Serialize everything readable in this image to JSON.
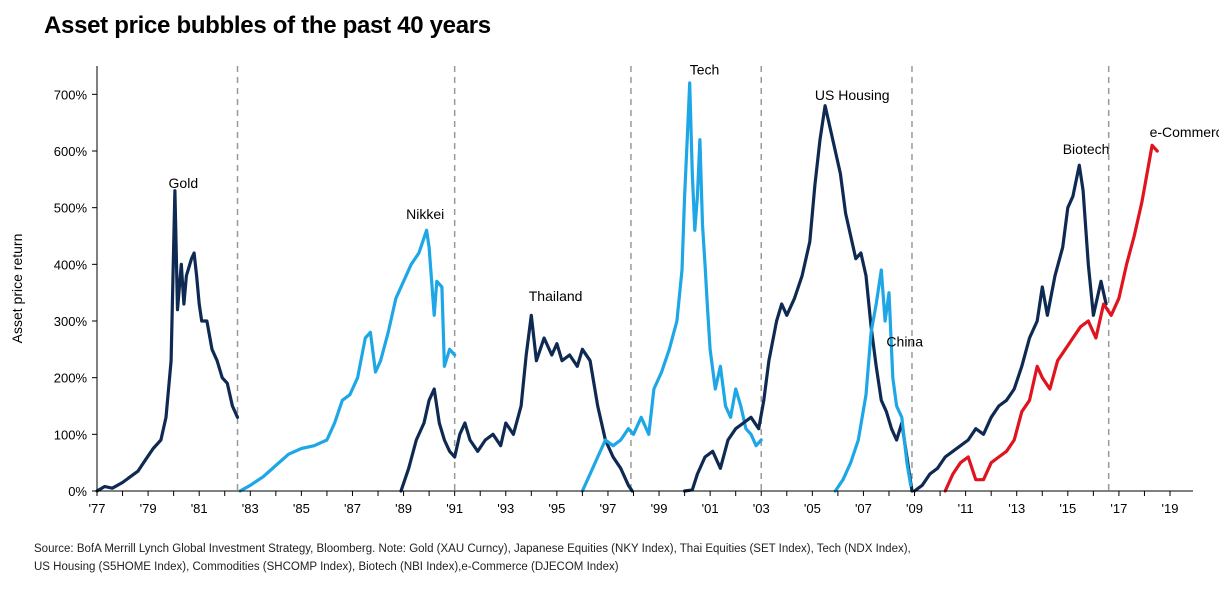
{
  "title": "Asset price bubbles of the past 40 years",
  "source_lines": [
    "Source: BofA Merrill Lynch Global Investment Strategy, Bloomberg. Note: Gold (XAU Curncy), Japanese Equities (NKY Index), Thai Equities (SET Index), Tech (NDX Index),",
    "US Housing (S5HOME Index), Commodities (SHCOMP Index), Biotech (NBI Index),e-Commerce (DJECOM Index)"
  ],
  "colors": {
    "dark": "#0f2a52",
    "light": "#1ea7e6",
    "red": "#e0141e",
    "divider": "#999999"
  },
  "chart_data": {
    "type": "line",
    "title": "Asset price bubbles of the past 40 years",
    "xlabel": "",
    "ylabel": "Asset price return",
    "xlim": [
      1977,
      2019.9
    ],
    "ylim": [
      0,
      750
    ],
    "yticks": [
      0,
      100,
      200,
      300,
      400,
      500,
      600,
      700
    ],
    "ytick_labels": [
      "0%",
      "100%",
      "200%",
      "300%",
      "400%",
      "500%",
      "600%",
      "700%"
    ],
    "xticks": [
      1977,
      1979,
      1981,
      1983,
      1985,
      1987,
      1989,
      1991,
      1993,
      1995,
      1997,
      1999,
      2001,
      2003,
      2005,
      2007,
      2009,
      2011,
      2013,
      2015,
      2017,
      2019
    ],
    "xtick_labels": [
      "'77",
      "'79",
      "'81",
      "'83",
      "'85",
      "'87",
      "'89",
      "'91",
      "'93",
      "'95",
      "'97",
      "'99",
      "'01",
      "'03",
      "'05",
      "'07",
      "'09",
      "'11",
      "'13",
      "'15",
      "'17",
      "'19"
    ],
    "dividers": [
      1982.5,
      1991.0,
      1997.9,
      2003.0,
      2008.9,
      2016.6
    ],
    "grid": false,
    "series": [
      {
        "name": "Gold",
        "color_key": "dark",
        "label_at": [
          1979.8,
          535
        ],
        "points": [
          [
            1977.0,
            0
          ],
          [
            1977.3,
            8
          ],
          [
            1977.6,
            5
          ],
          [
            1978.0,
            15
          ],
          [
            1978.3,
            25
          ],
          [
            1978.6,
            35
          ],
          [
            1978.9,
            55
          ],
          [
            1979.2,
            75
          ],
          [
            1979.5,
            90
          ],
          [
            1979.7,
            130
          ],
          [
            1979.9,
            230
          ],
          [
            1980.05,
            530
          ],
          [
            1980.15,
            320
          ],
          [
            1980.3,
            400
          ],
          [
            1980.4,
            330
          ],
          [
            1980.5,
            380
          ],
          [
            1980.7,
            410
          ],
          [
            1980.8,
            420
          ],
          [
            1980.9,
            380
          ],
          [
            1981.0,
            330
          ],
          [
            1981.1,
            300
          ],
          [
            1981.3,
            300
          ],
          [
            1981.5,
            250
          ],
          [
            1981.7,
            230
          ],
          [
            1981.9,
            200
          ],
          [
            1982.1,
            190
          ],
          [
            1982.3,
            150
          ],
          [
            1982.5,
            130
          ]
        ]
      },
      {
        "name": "Nikkei",
        "color_key": "light",
        "label_at": [
          1989.1,
          480
        ],
        "points": [
          [
            1982.6,
            0
          ],
          [
            1983.0,
            10
          ],
          [
            1983.5,
            25
          ],
          [
            1984.0,
            45
          ],
          [
            1984.5,
            65
          ],
          [
            1985.0,
            75
          ],
          [
            1985.5,
            80
          ],
          [
            1986.0,
            90
          ],
          [
            1986.3,
            120
          ],
          [
            1986.6,
            160
          ],
          [
            1986.9,
            170
          ],
          [
            1987.2,
            200
          ],
          [
            1987.5,
            270
          ],
          [
            1987.7,
            280
          ],
          [
            1987.9,
            210
          ],
          [
            1988.1,
            230
          ],
          [
            1988.4,
            280
          ],
          [
            1988.7,
            340
          ],
          [
            1989.0,
            370
          ],
          [
            1989.3,
            400
          ],
          [
            1989.6,
            420
          ],
          [
            1989.9,
            460
          ],
          [
            1990.0,
            430
          ],
          [
            1990.2,
            310
          ],
          [
            1990.3,
            370
          ],
          [
            1990.5,
            360
          ],
          [
            1990.6,
            220
          ],
          [
            1990.8,
            250
          ],
          [
            1991.0,
            240
          ]
        ]
      },
      {
        "name": "Thailand",
        "color_key": "dark",
        "label_at": [
          1993.9,
          335
        ],
        "points": [
          [
            1988.9,
            0
          ],
          [
            1989.2,
            40
          ],
          [
            1989.5,
            90
          ],
          [
            1989.8,
            120
          ],
          [
            1990.0,
            160
          ],
          [
            1990.2,
            180
          ],
          [
            1990.4,
            120
          ],
          [
            1990.6,
            90
          ],
          [
            1990.8,
            70
          ],
          [
            1991.0,
            60
          ],
          [
            1991.2,
            100
          ],
          [
            1991.4,
            120
          ],
          [
            1991.6,
            90
          ],
          [
            1991.9,
            70
          ],
          [
            1992.2,
            90
          ],
          [
            1992.5,
            100
          ],
          [
            1992.8,
            80
          ],
          [
            1993.0,
            120
          ],
          [
            1993.3,
            100
          ],
          [
            1993.6,
            150
          ],
          [
            1993.8,
            240
          ],
          [
            1994.0,
            310
          ],
          [
            1994.2,
            230
          ],
          [
            1994.5,
            270
          ],
          [
            1994.8,
            240
          ],
          [
            1995.0,
            260
          ],
          [
            1995.2,
            230
          ],
          [
            1995.5,
            240
          ],
          [
            1995.8,
            220
          ],
          [
            1996.0,
            250
          ],
          [
            1996.3,
            230
          ],
          [
            1996.6,
            150
          ],
          [
            1996.9,
            90
          ],
          [
            1997.2,
            60
          ],
          [
            1997.5,
            40
          ],
          [
            1997.8,
            10
          ],
          [
            1997.95,
            0
          ]
        ]
      },
      {
        "name": "Tech",
        "color_key": "light",
        "label_at": [
          2000.2,
          735
        ],
        "points": [
          [
            1996.0,
            0
          ],
          [
            1996.3,
            30
          ],
          [
            1996.6,
            60
          ],
          [
            1996.9,
            90
          ],
          [
            1997.2,
            80
          ],
          [
            1997.5,
            90
          ],
          [
            1997.8,
            110
          ],
          [
            1998.0,
            100
          ],
          [
            1998.3,
            130
          ],
          [
            1998.6,
            100
          ],
          [
            1998.8,
            180
          ],
          [
            1999.1,
            210
          ],
          [
            1999.4,
            250
          ],
          [
            1999.7,
            300
          ],
          [
            1999.9,
            390
          ],
          [
            2000.0,
            520
          ],
          [
            2000.1,
            620
          ],
          [
            2000.2,
            720
          ],
          [
            2000.3,
            560
          ],
          [
            2000.4,
            460
          ],
          [
            2000.5,
            520
          ],
          [
            2000.6,
            620
          ],
          [
            2000.7,
            470
          ],
          [
            2000.8,
            400
          ],
          [
            2000.9,
            320
          ],
          [
            2001.0,
            250
          ],
          [
            2001.2,
            180
          ],
          [
            2001.4,
            220
          ],
          [
            2001.6,
            150
          ],
          [
            2001.8,
            130
          ],
          [
            2002.0,
            180
          ],
          [
            2002.2,
            150
          ],
          [
            2002.4,
            110
          ],
          [
            2002.6,
            100
          ],
          [
            2002.8,
            80
          ],
          [
            2003.0,
            90
          ]
        ]
      },
      {
        "name": "US Housing",
        "color_key": "dark",
        "label_at": [
          2005.1,
          690
        ],
        "points": [
          [
            2000.0,
            0
          ],
          [
            2000.3,
            2
          ],
          [
            2000.5,
            30
          ],
          [
            2000.8,
            60
          ],
          [
            2001.1,
            70
          ],
          [
            2001.4,
            40
          ],
          [
            2001.7,
            90
          ],
          [
            2002.0,
            110
          ],
          [
            2002.3,
            120
          ],
          [
            2002.6,
            130
          ],
          [
            2002.9,
            110
          ],
          [
            2003.1,
            160
          ],
          [
            2003.3,
            230
          ],
          [
            2003.6,
            300
          ],
          [
            2003.8,
            330
          ],
          [
            2004.0,
            310
          ],
          [
            2004.3,
            340
          ],
          [
            2004.6,
            380
          ],
          [
            2004.9,
            440
          ],
          [
            2005.1,
            540
          ],
          [
            2005.3,
            620
          ],
          [
            2005.5,
            680
          ],
          [
            2005.7,
            640
          ],
          [
            2005.9,
            600
          ],
          [
            2006.1,
            560
          ],
          [
            2006.3,
            490
          ],
          [
            2006.5,
            450
          ],
          [
            2006.7,
            410
          ],
          [
            2006.9,
            420
          ],
          [
            2007.1,
            380
          ],
          [
            2007.3,
            290
          ],
          [
            2007.5,
            220
          ],
          [
            2007.7,
            160
          ],
          [
            2007.9,
            140
          ],
          [
            2008.1,
            110
          ],
          [
            2008.3,
            90
          ],
          [
            2008.5,
            120
          ],
          [
            2008.7,
            60
          ],
          [
            2008.9,
            0
          ]
        ]
      },
      {
        "name": "China",
        "color_key": "light",
        "label_at": [
          2007.9,
          255
        ],
        "points": [
          [
            2005.9,
            0
          ],
          [
            2006.2,
            20
          ],
          [
            2006.5,
            50
          ],
          [
            2006.8,
            90
          ],
          [
            2007.1,
            170
          ],
          [
            2007.3,
            280
          ],
          [
            2007.5,
            330
          ],
          [
            2007.7,
            390
          ],
          [
            2007.85,
            300
          ],
          [
            2008.0,
            350
          ],
          [
            2008.15,
            200
          ],
          [
            2008.3,
            150
          ],
          [
            2008.5,
            130
          ],
          [
            2008.7,
            50
          ],
          [
            2008.85,
            10
          ]
        ]
      },
      {
        "name": "Biotech",
        "color_key": "dark",
        "label_at": [
          2014.8,
          595
        ],
        "points": [
          [
            2009.0,
            0
          ],
          [
            2009.3,
            10
          ],
          [
            2009.6,
            30
          ],
          [
            2009.9,
            40
          ],
          [
            2010.2,
            60
          ],
          [
            2010.5,
            70
          ],
          [
            2010.8,
            80
          ],
          [
            2011.1,
            90
          ],
          [
            2011.4,
            110
          ],
          [
            2011.7,
            100
          ],
          [
            2012.0,
            130
          ],
          [
            2012.3,
            150
          ],
          [
            2012.6,
            160
          ],
          [
            2012.9,
            180
          ],
          [
            2013.2,
            220
          ],
          [
            2013.5,
            270
          ],
          [
            2013.8,
            300
          ],
          [
            2014.0,
            360
          ],
          [
            2014.2,
            310
          ],
          [
            2014.5,
            380
          ],
          [
            2014.8,
            430
          ],
          [
            2015.0,
            500
          ],
          [
            2015.2,
            520
          ],
          [
            2015.45,
            575
          ],
          [
            2015.6,
            530
          ],
          [
            2015.8,
            400
          ],
          [
            2016.0,
            310
          ],
          [
            2016.3,
            370
          ],
          [
            2016.5,
            330
          ]
        ]
      },
      {
        "name": "e-Commerce",
        "color_key": "red",
        "label_at": [
          2018.2,
          625
        ],
        "points": [
          [
            2010.2,
            0
          ],
          [
            2010.5,
            30
          ],
          [
            2010.8,
            50
          ],
          [
            2011.1,
            60
          ],
          [
            2011.4,
            20
          ],
          [
            2011.7,
            20
          ],
          [
            2012.0,
            50
          ],
          [
            2012.3,
            60
          ],
          [
            2012.6,
            70
          ],
          [
            2012.9,
            90
          ],
          [
            2013.2,
            140
          ],
          [
            2013.5,
            160
          ],
          [
            2013.8,
            220
          ],
          [
            2014.0,
            200
          ],
          [
            2014.3,
            180
          ],
          [
            2014.6,
            230
          ],
          [
            2014.9,
            250
          ],
          [
            2015.2,
            270
          ],
          [
            2015.5,
            290
          ],
          [
            2015.8,
            300
          ],
          [
            2016.1,
            270
          ],
          [
            2016.4,
            330
          ],
          [
            2016.7,
            310
          ],
          [
            2017.0,
            340
          ],
          [
            2017.3,
            400
          ],
          [
            2017.6,
            450
          ],
          [
            2017.9,
            510
          ],
          [
            2018.1,
            560
          ],
          [
            2018.3,
            610
          ],
          [
            2018.5,
            600
          ]
        ]
      }
    ]
  }
}
